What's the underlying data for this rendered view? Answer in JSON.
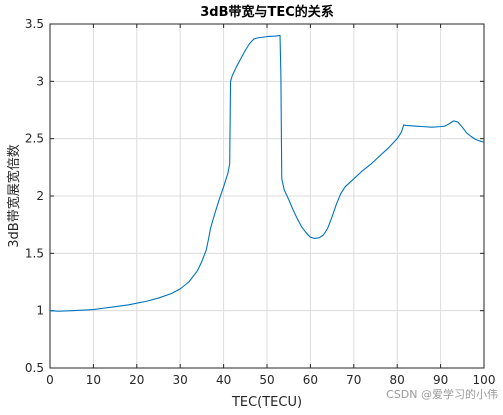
{
  "chart_data": {
    "type": "line",
    "title": "3dB带宽与TEC的关系",
    "xlabel": "TEC(TECU)",
    "ylabel": "3dB带宽展宽倍数",
    "xlim": [
      0,
      100
    ],
    "ylim": [
      0.5,
      3.5
    ],
    "x_ticks": [
      0,
      10,
      20,
      30,
      40,
      50,
      60,
      70,
      80,
      90,
      100
    ],
    "y_ticks": [
      0.5,
      1,
      1.5,
      2,
      2.5,
      3,
      3.5
    ],
    "grid": true,
    "series_color": "#0072BD",
    "series": [
      {
        "x": [
          0,
          2,
          5,
          8,
          10,
          12,
          15,
          18,
          20,
          22,
          25,
          28,
          30,
          32,
          34,
          35,
          36,
          36.5,
          37,
          38,
          39,
          40,
          41,
          41.4,
          41.6,
          42,
          43,
          44,
          45,
          46,
          47,
          48,
          50,
          52,
          53,
          53.2,
          53.4,
          54,
          55,
          56,
          57,
          58,
          59,
          60,
          61,
          62,
          63,
          64,
          65,
          66,
          67,
          68,
          70,
          72,
          74,
          76,
          78,
          80,
          81,
          81.5,
          82,
          84,
          86,
          88,
          90,
          91,
          92,
          93,
          94,
          95,
          96,
          97,
          98,
          99,
          100
        ],
        "y": [
          1.0,
          0.995,
          1.0,
          1.005,
          1.01,
          1.02,
          1.035,
          1.05,
          1.065,
          1.08,
          1.11,
          1.15,
          1.19,
          1.25,
          1.35,
          1.43,
          1.53,
          1.62,
          1.72,
          1.85,
          1.97,
          2.08,
          2.2,
          2.28,
          3.0,
          3.05,
          3.13,
          3.2,
          3.27,
          3.33,
          3.37,
          3.38,
          3.39,
          3.395,
          3.4,
          3.05,
          2.15,
          2.05,
          1.97,
          1.88,
          1.8,
          1.73,
          1.68,
          1.64,
          1.63,
          1.635,
          1.66,
          1.72,
          1.82,
          1.93,
          2.02,
          2.08,
          2.15,
          2.22,
          2.28,
          2.35,
          2.42,
          2.5,
          2.56,
          2.62,
          2.615,
          2.61,
          2.605,
          2.6,
          2.605,
          2.61,
          2.63,
          2.655,
          2.645,
          2.6,
          2.55,
          2.52,
          2.495,
          2.48,
          2.47
        ]
      }
    ]
  },
  "watermark": "CSDN @爱学习的小伟"
}
